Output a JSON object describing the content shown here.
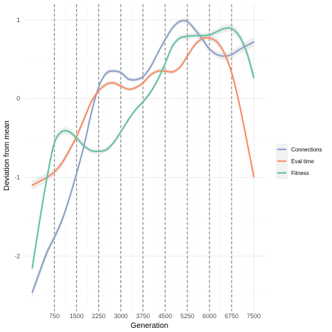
{
  "chart_data": {
    "type": "line",
    "xlabel": "Generation",
    "ylabel": "Deviation from mean",
    "xlim": [
      -250,
      7900
    ],
    "ylim": [
      -2.7,
      1.2
    ],
    "x_ticks": [
      750,
      1500,
      2250,
      3000,
      3750,
      4500,
      5250,
      6000,
      6750,
      7500
    ],
    "y_ticks": [
      -2,
      -1,
      0,
      1
    ],
    "vlines": [
      750,
      1500,
      2250,
      3000,
      3750,
      4500,
      5250,
      6000,
      6750
    ],
    "grid": true,
    "legend_position": "right",
    "x": [
      0,
      250,
      500,
      750,
      1000,
      1250,
      1500,
      1750,
      2000,
      2250,
      2500,
      2750,
      3000,
      3250,
      3500,
      3750,
      4000,
      4250,
      4500,
      4750,
      5000,
      5250,
      5500,
      5750,
      6000,
      6250,
      6500,
      6750,
      7000,
      7250,
      7500
    ],
    "series": [
      {
        "name": "Connections",
        "color": "#8DA0CB",
        "values": [
          -2.46,
          -2.2,
          -1.95,
          -1.76,
          -1.55,
          -1.27,
          -0.95,
          -0.6,
          -0.18,
          0.15,
          0.32,
          0.35,
          0.33,
          0.25,
          0.24,
          0.28,
          0.4,
          0.58,
          0.75,
          0.9,
          0.98,
          0.98,
          0.88,
          0.76,
          0.63,
          0.56,
          0.54,
          0.56,
          0.62,
          0.67,
          0.72
        ]
      },
      {
        "name": "Eval time",
        "color": "#FC8D62",
        "values": [
          -1.1,
          -1.05,
          -1.0,
          -0.93,
          -0.82,
          -0.66,
          -0.48,
          -0.26,
          -0.04,
          0.1,
          0.18,
          0.2,
          0.16,
          0.12,
          0.14,
          0.2,
          0.3,
          0.35,
          0.35,
          0.34,
          0.4,
          0.54,
          0.68,
          0.76,
          0.77,
          0.72,
          0.58,
          0.33,
          -0.05,
          -0.51,
          -0.99
        ]
      },
      {
        "name": "Fitness",
        "color": "#66C2A5",
        "values": [
          -2.15,
          -1.55,
          -1.0,
          -0.56,
          -0.42,
          -0.42,
          -0.5,
          -0.6,
          -0.66,
          -0.67,
          -0.65,
          -0.56,
          -0.42,
          -0.27,
          -0.14,
          -0.04,
          0.08,
          0.24,
          0.45,
          0.67,
          0.77,
          0.79,
          0.8,
          0.8,
          0.81,
          0.85,
          0.89,
          0.89,
          0.8,
          0.6,
          0.27
        ]
      }
    ]
  }
}
